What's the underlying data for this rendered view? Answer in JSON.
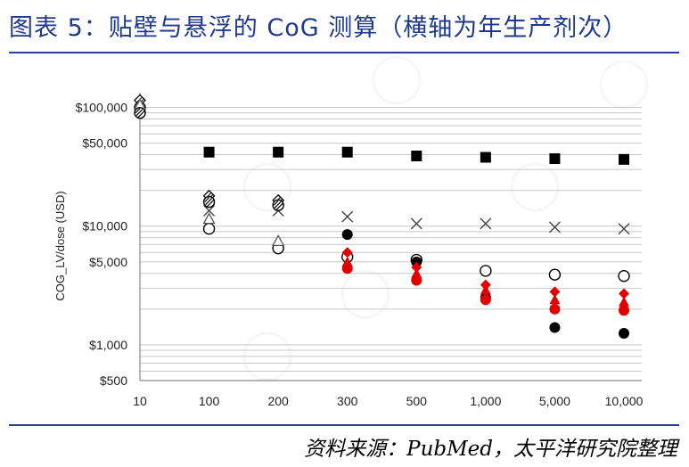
{
  "title": "图表 5：贴壁与悬浮的 CoG 测算（横轴为年生产剂次）",
  "source": "资料来源：PubMed，太平洋研究院整理",
  "chart_data": {
    "type": "scatter",
    "title": "图表 5：贴壁与悬浮的 CoG 测算（横轴为年生产剂次）",
    "ylabel": "COG_LV/dose (USD)",
    "xlabel": "",
    "y_scale": "log",
    "ylim": [
      500,
      120000
    ],
    "categories": [
      "10",
      "100",
      "200",
      "300",
      "500",
      "1,000",
      "5,000",
      "10,000"
    ],
    "y_ticks": [
      {
        "value": 500,
        "label": "$500"
      },
      {
        "value": 1000,
        "label": "$1,000"
      },
      {
        "value": 5000,
        "label": "$5,000"
      },
      {
        "value": 10000,
        "label": "$10,000"
      },
      {
        "value": 50000,
        "label": "$50,000"
      },
      {
        "value": 100000,
        "label": "$100,000"
      }
    ],
    "grid": true,
    "colors": {
      "black": "#000000",
      "red": "#e00000",
      "grid": "#c8c8c8",
      "axis": "#888888"
    },
    "series": [
      {
        "marker": "square-filled",
        "color": "#000000",
        "values": [
          null,
          42000,
          42000,
          42000,
          39000,
          38000,
          37000,
          36500
        ]
      },
      {
        "marker": "x",
        "color": "#444444",
        "values": [
          null,
          13500,
          13500,
          12000,
          10500,
          10500,
          9800,
          9500
        ]
      },
      {
        "marker": "circle-open",
        "color": "#000000",
        "values": [
          100000,
          9500,
          6500,
          5500,
          5200,
          4200,
          3900,
          3800
        ]
      },
      {
        "marker": "circle-filled",
        "color": "#000000",
        "values": [
          null,
          null,
          null,
          8500,
          5000,
          2500,
          1400,
          1250
        ]
      },
      {
        "marker": "diamond-hatched",
        "color": "#000000",
        "values": [
          115000,
          18000,
          16500,
          null,
          null,
          null,
          null,
          null
        ]
      },
      {
        "marker": "triangle-open",
        "color": "#555555",
        "values": [
          105000,
          11500,
          7500,
          null,
          null,
          null,
          null,
          null
        ]
      },
      {
        "marker": "circle-hatched",
        "color": "#000000",
        "values": [
          90000,
          16000,
          15000,
          null,
          null,
          null,
          null,
          null
        ]
      },
      {
        "marker": "diamond-filled",
        "color": "#e00000",
        "values": [
          null,
          null,
          null,
          6000,
          4500,
          3200,
          2800,
          2700
        ]
      },
      {
        "marker": "triangle-filled",
        "color": "#e00000",
        "values": [
          null,
          null,
          null,
          5000,
          4000,
          2900,
          2400,
          2300
        ]
      },
      {
        "marker": "circle-filled",
        "color": "#e00000",
        "values": [
          null,
          null,
          null,
          4400,
          3500,
          2400,
          2000,
          1950
        ]
      }
    ]
  }
}
